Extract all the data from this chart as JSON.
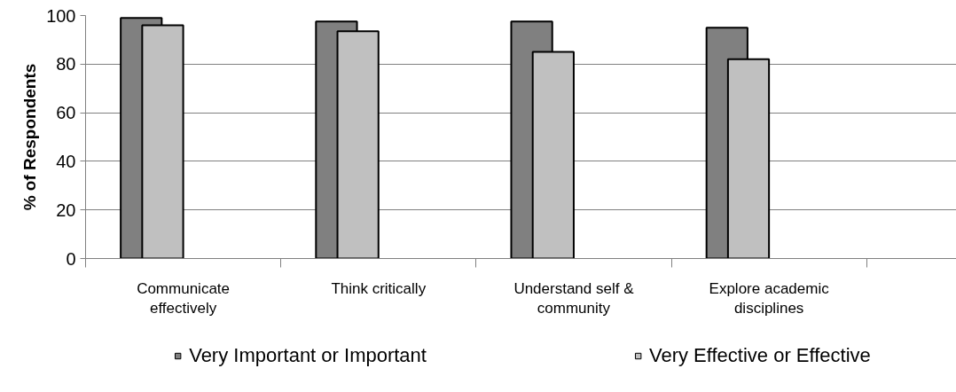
{
  "chart_data": {
    "type": "bar",
    "ylabel": "% of Respondents",
    "categories": [
      "Communicate effectively",
      "Think critically",
      "Understand self & community",
      "Explore academic disciplines"
    ],
    "series": [
      {
        "name": "Very Important or Important",
        "color": "#808080",
        "values": [
          99,
          97.5,
          97.5,
          95
        ]
      },
      {
        "name": "Very Effective or Effective",
        "color": "#c0c0c0",
        "values": [
          96,
          93.5,
          85,
          82
        ]
      }
    ],
    "ylim": [
      0,
      100
    ],
    "yticks": [
      0,
      20,
      40,
      60,
      80,
      100
    ],
    "grid": "y",
    "legend": "bottom"
  }
}
